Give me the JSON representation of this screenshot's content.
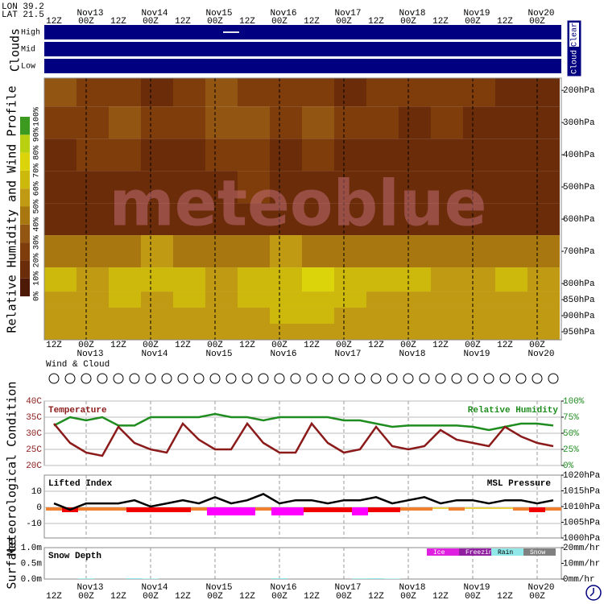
{
  "location": {
    "lon": "LON 39.2",
    "lat": "LAT 21.5"
  },
  "time_axis": {
    "days": [
      "Nov13",
      "Nov14",
      "Nov15",
      "Nov16",
      "Nov17",
      "Nov18",
      "Nov19",
      "Nov20"
    ],
    "hours": [
      "12Z",
      "00Z",
      "12Z",
      "00Z",
      "12Z",
      "00Z",
      "12Z",
      "00Z",
      "12Z",
      "00Z",
      "12Z",
      "00Z",
      "12Z",
      "00Z",
      "12Z",
      "00Z"
    ]
  },
  "section_labels": {
    "clouds": "Clouds",
    "profile": "Relative Humidity and Wind Profile",
    "meteo": "Meteorological Condition",
    "surface": "Surface",
    "wind_cloud": "Wind & Cloud"
  },
  "clouds": {
    "rows": [
      "High",
      "Mid",
      "Low"
    ],
    "legend": [
      "Cloud",
      "Clear"
    ],
    "color": "#000080",
    "values": [
      [
        0,
        0,
        0,
        0,
        0,
        0,
        0,
        0,
        0,
        0,
        0,
        30,
        0,
        0,
        0,
        0,
        0,
        0,
        0,
        0,
        0,
        0,
        0,
        0,
        0,
        0,
        0,
        0,
        0,
        0,
        0,
        0
      ],
      [
        0,
        0,
        0,
        0,
        0,
        0,
        0,
        0,
        0,
        0,
        0,
        0,
        0,
        0,
        0,
        0,
        0,
        0,
        0,
        0,
        0,
        0,
        0,
        0,
        0,
        0,
        0,
        0,
        0,
        0,
        0,
        0
      ],
      [
        0,
        0,
        0,
        0,
        0,
        0,
        0,
        0,
        0,
        0,
        0,
        0,
        0,
        0,
        0,
        0,
        0,
        0,
        0,
        0,
        0,
        0,
        0,
        0,
        0,
        0,
        0,
        0,
        0,
        0,
        0,
        0
      ]
    ]
  },
  "profile": {
    "type": "heatmap",
    "plim": [
      162,
      975
    ],
    "levels": [
      {
        "value": 200,
        "label": "200hPa"
      },
      {
        "value": 300,
        "label": "300hPa"
      },
      {
        "value": 400,
        "label": "400hPa"
      },
      {
        "value": 500,
        "label": "500hPa"
      },
      {
        "value": 600,
        "label": "600hPa"
      },
      {
        "value": 700,
        "label": "700hPa"
      },
      {
        "value": 800,
        "label": "800hPa"
      },
      {
        "value": 850,
        "label": "850hPa"
      },
      {
        "value": 900,
        "label": "900hPa"
      },
      {
        "value": 950,
        "label": "950hPa"
      }
    ],
    "rh": [
      [
        30,
        20,
        25,
        15,
        20,
        30,
        25,
        20,
        25,
        15,
        20,
        20,
        25,
        20,
        15,
        15
      ],
      [
        20,
        25,
        30,
        25,
        20,
        35,
        30,
        25,
        30,
        20,
        25,
        15,
        20,
        15,
        10,
        10
      ],
      [
        15,
        20,
        20,
        15,
        15,
        20,
        20,
        15,
        20,
        15,
        15,
        10,
        15,
        10,
        10,
        10
      ],
      [
        10,
        15,
        15,
        10,
        15,
        15,
        20,
        15,
        15,
        10,
        15,
        10,
        10,
        10,
        10,
        10
      ],
      [
        10,
        10,
        15,
        10,
        10,
        15,
        15,
        10,
        15,
        10,
        10,
        10,
        10,
        10,
        10,
        10
      ],
      [
        40,
        45,
        40,
        50,
        45,
        40,
        45,
        50,
        45,
        40,
        45,
        40,
        45,
        40,
        40,
        45
      ],
      [
        60,
        55,
        60,
        65,
        60,
        55,
        60,
        65,
        70,
        60,
        65,
        60,
        55,
        55,
        60,
        55
      ],
      [
        55,
        50,
        60,
        55,
        60,
        55,
        60,
        60,
        65,
        60,
        55,
        55,
        50,
        55,
        55,
        50
      ],
      [
        55,
        55,
        50,
        55,
        55,
        50,
        55,
        60,
        60,
        55,
        55,
        50,
        55,
        50,
        50,
        55
      ],
      [
        50,
        55,
        50,
        55,
        55,
        50,
        55,
        55,
        55,
        50,
        55,
        50,
        50,
        55,
        50,
        50
      ]
    ],
    "scale": {
      "ticks": [
        {
          "value": 0,
          "label": "0%"
        },
        {
          "value": 10,
          "label": "10%"
        },
        {
          "value": 20,
          "label": "20%"
        },
        {
          "value": 30,
          "label": "30%"
        },
        {
          "value": 40,
          "label": "40%"
        },
        {
          "value": 50,
          "label": "50%"
        },
        {
          "value": 60,
          "label": "60%"
        },
        {
          "value": 70,
          "label": "70%"
        },
        {
          "value": 80,
          "label": "80%"
        },
        {
          "value": 90,
          "label": "90%"
        },
        {
          "value": 100,
          "label": "100%"
        }
      ],
      "colors": [
        "#4e1a08",
        "#6b2c0a",
        "#7f3d0c",
        "#935512",
        "#a8770f",
        "#c09a12",
        "#cdb80c",
        "#dcd40a",
        "#b8d010",
        "#3c9a20"
      ]
    },
    "watermark": "meteoblue"
  },
  "temperature": {
    "title": "Temperature",
    "y2_title": "Relative Humidity",
    "ylim": [
      20,
      40
    ],
    "yticks": [
      {
        "value": 40,
        "label": "40C"
      },
      {
        "value": 35,
        "label": "35C"
      },
      {
        "value": 30,
        "label": "30C"
      },
      {
        "value": 25,
        "label": "25C"
      },
      {
        "value": 20,
        "label": "20C"
      }
    ],
    "y2lim": [
      0,
      100
    ],
    "y2ticks": [
      {
        "value": 100,
        "label": "100%"
      },
      {
        "value": 75,
        "label": "75%"
      },
      {
        "value": 50,
        "label": "50%"
      },
      {
        "value": 25,
        "label": "25%"
      },
      {
        "value": 0,
        "label": "0%"
      }
    ],
    "series": [
      {
        "color": "#8b1a1a",
        "values": [
          33,
          27,
          24,
          23,
          32,
          27,
          25,
          24,
          33,
          28,
          25,
          25,
          33,
          27,
          24,
          24,
          33,
          27,
          24,
          25,
          32,
          26,
          25,
          26,
          31,
          28,
          27,
          26,
          32,
          29,
          27,
          26
        ]
      },
      {
        "color": "#1e8c1e",
        "axis": "y2",
        "values": [
          62,
          75,
          70,
          75,
          62,
          62,
          75,
          75,
          75,
          75,
          80,
          75,
          75,
          70,
          75,
          75,
          75,
          75,
          70,
          70,
          65,
          60,
          62,
          62,
          62,
          62,
          60,
          55,
          60,
          65,
          65,
          62
        ]
      }
    ]
  },
  "stability": {
    "title": "Lifted Index",
    "y2_title": "MSL Pressure",
    "ylim": [
      -19,
      20
    ],
    "yticks": [
      10,
      0,
      -10
    ],
    "y2lim": [
      1000,
      1020
    ],
    "y2ticks": [
      {
        "value": 1020,
        "label": "1020hPa"
      },
      {
        "value": 1015,
        "label": "1015hPa"
      },
      {
        "value": 1010,
        "label": "1010hPa"
      },
      {
        "value": 1005,
        "label": "1005hPa"
      },
      {
        "value": 1000,
        "label": "1000hPa"
      }
    ],
    "lifted_index": [
      -2,
      -3,
      -2,
      -2,
      -2,
      -3,
      -3,
      -3,
      -3,
      -2,
      -5,
      -5,
      -5,
      -2,
      -5,
      -5,
      -3,
      -3,
      -3,
      -5,
      -3,
      -3,
      -2,
      -2,
      -1,
      -2,
      -1,
      -1,
      -1,
      -2,
      -3,
      -2
    ],
    "pressure": {
      "color": "#000000",
      "values": [
        1011,
        1009,
        1011,
        1011,
        1011,
        1012,
        1010,
        1011,
        1012,
        1011,
        1013,
        1011,
        1012,
        1014,
        1011,
        1012,
        1012,
        1011,
        1012,
        1012,
        1013,
        1011,
        1012,
        1013,
        1011,
        1012,
        1012,
        1011,
        1012,
        1012,
        1011,
        1012
      ]
    }
  },
  "surface": {
    "title": "Snow Depth",
    "ylim": [
      0,
      1
    ],
    "yticks": [
      {
        "value": 1,
        "label": "1.0m"
      },
      {
        "value": 0.5,
        "label": "0.5m"
      },
      {
        "value": 0,
        "label": "0.0m"
      }
    ],
    "y2lim": [
      0,
      20
    ],
    "y2ticks": [
      {
        "value": 20,
        "label": "20mm/hr"
      },
      {
        "value": 10,
        "label": "10mm/hr"
      },
      {
        "value": 0,
        "label": "0mm/hr"
      }
    ],
    "legend": [
      {
        "name": "Ice",
        "color": "#e020e0"
      },
      {
        "name": "Freezing",
        "color": "#9020a0"
      },
      {
        "name": "Rain",
        "color": "#90e8e8"
      },
      {
        "name": "Snow",
        "color": "#808080"
      }
    ],
    "rain": [
      0,
      0,
      0.4,
      0,
      0,
      0.5,
      0.3,
      0,
      0,
      0,
      0,
      0,
      0,
      0,
      0.5,
      0,
      0,
      0,
      0,
      0.4,
      0.5,
      0.3,
      0,
      0,
      0,
      0,
      0,
      0,
      0,
      0,
      0,
      0
    ]
  }
}
